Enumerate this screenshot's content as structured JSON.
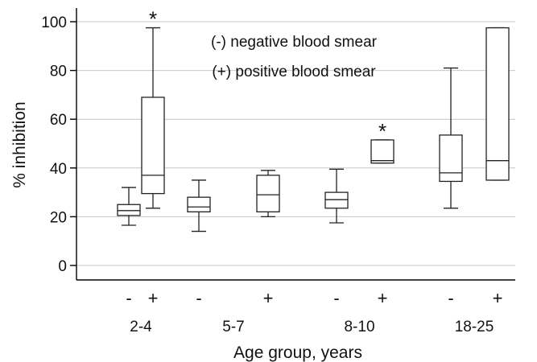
{
  "chart_data": {
    "type": "box",
    "ylabel": "% inhibition",
    "xlabel": "Age group, years",
    "ylim": [
      0,
      105
    ],
    "yticks": [
      0,
      20,
      40,
      60,
      80,
      100
    ],
    "grid": true,
    "legend_placement": "top-center",
    "legend": [
      "(-) negative blood smear",
      "(+) positive blood smear"
    ],
    "sign_labels": [
      "-",
      "+"
    ],
    "groups": [
      {
        "label": "2-4",
        "boxes": [
          {
            "sign": "-",
            "min": 16.5,
            "q1": 20.5,
            "median": 22.5,
            "q3": 25,
            "max": 32,
            "star": false
          },
          {
            "sign": "+",
            "min": 23.5,
            "q1": 29.5,
            "median": 37,
            "q3": 69,
            "max": 97.5,
            "star": true
          }
        ]
      },
      {
        "label": "5-7",
        "boxes": [
          {
            "sign": "-",
            "min": 14,
            "q1": 22,
            "median": 24,
            "q3": 28,
            "max": 35,
            "star": false
          },
          {
            "sign": "+",
            "min": 20,
            "q1": 22,
            "median": 29,
            "q3": 37,
            "max": 39,
            "star": false
          }
        ]
      },
      {
        "label": "8-10",
        "boxes": [
          {
            "sign": "-",
            "min": 17.5,
            "q1": 23.5,
            "median": 27,
            "q3": 30,
            "max": 39.5,
            "star": false
          },
          {
            "sign": "+",
            "min": 42,
            "q1": 42,
            "median": 43,
            "q3": 51.5,
            "max": 51.5,
            "star": true
          }
        ]
      },
      {
        "label": "18-25",
        "boxes": [
          {
            "sign": "-",
            "min": 23.5,
            "q1": 34.5,
            "median": 38,
            "q3": 53.5,
            "max": 81,
            "star": false
          },
          {
            "sign": "+",
            "min": 35,
            "q1": 35,
            "median": 43,
            "q3": 97.5,
            "max": 97.5,
            "star": false
          }
        ]
      }
    ],
    "star_symbol": "*"
  }
}
